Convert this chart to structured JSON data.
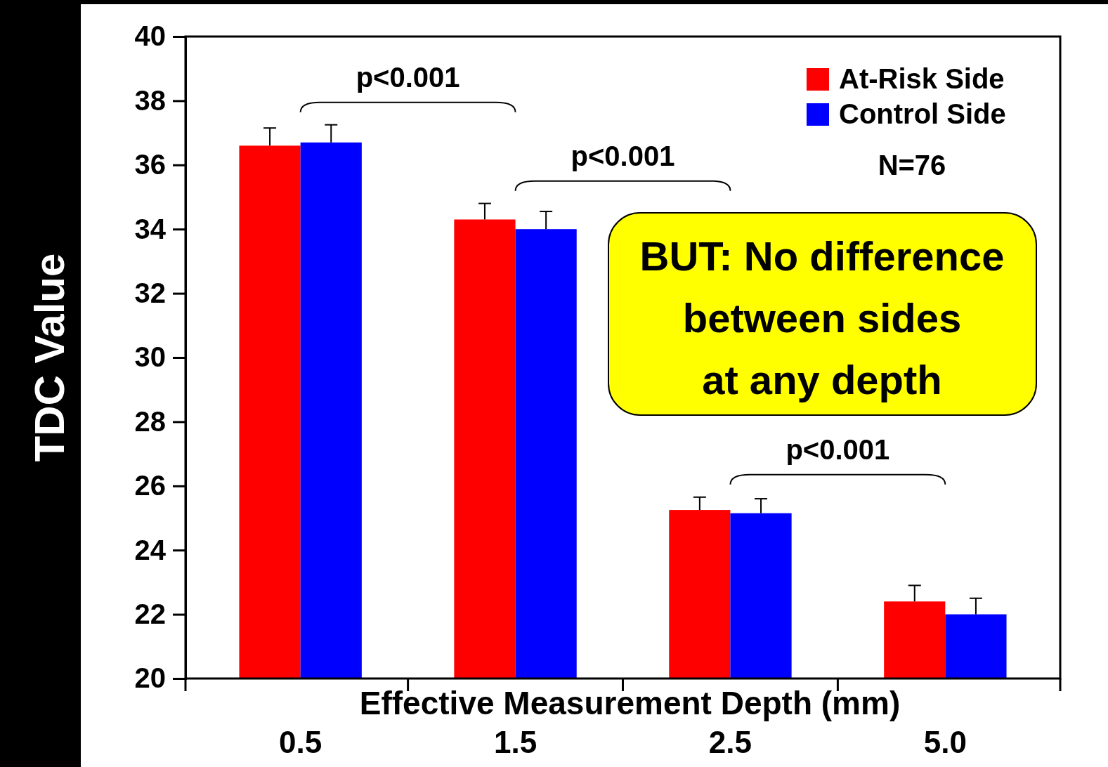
{
  "chart_data": {
    "type": "bar",
    "xlabel": "Effective Measurement Depth (mm)",
    "ylabel": "TDC Value",
    "categories": [
      "0.5",
      "1.5",
      "2.5",
      "5.0"
    ],
    "series": [
      {
        "name": "At-Risk Side",
        "color": "#ff0000",
        "values": [
          36.6,
          34.3,
          25.25,
          22.4
        ],
        "errors": [
          [
            36.6,
            37.15
          ],
          [
            34.3,
            34.8
          ],
          [
            25.25,
            25.65
          ],
          [
            22.4,
            22.9
          ]
        ]
      },
      {
        "name": "Control Side",
        "color": "#0000ff",
        "values": [
          36.7,
          34.0,
          25.15,
          22.0
        ],
        "errors": [
          [
            36.7,
            37.25
          ],
          [
            34.0,
            34.55
          ],
          [
            25.15,
            25.6
          ],
          [
            22.0,
            22.5
          ]
        ]
      }
    ],
    "ylim": [
      20,
      40
    ],
    "yticks": [
      20,
      22,
      24,
      26,
      28,
      30,
      32,
      34,
      36,
      38,
      40
    ],
    "grid": false,
    "legend": "top right",
    "annotations": [
      "p<0.001",
      "p<0.001",
      "p<0.001",
      "N=76",
      "BUT: No difference\nbetween sides\nat any depth"
    ]
  }
}
